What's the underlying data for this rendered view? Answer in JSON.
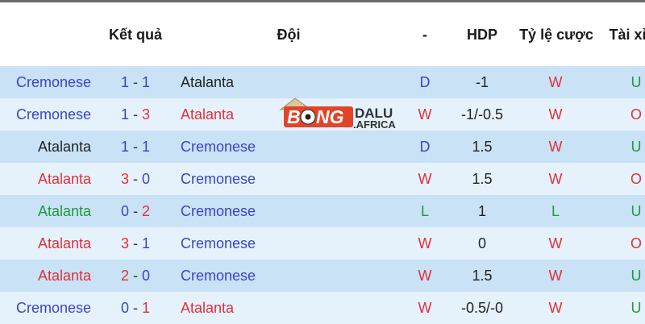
{
  "colors": {
    "blue": "#3a45c6",
    "red": "#e0303b",
    "green": "#1f9a3c",
    "dark": "#222222"
  },
  "header": {
    "result": "Kết quả",
    "team": "Đội",
    "dash": "-",
    "hdp": "HDP",
    "odds": "Tỷ lệ cược",
    "ou": "Tài xỉu"
  },
  "watermark": {
    "text_main": "BONG",
    "text_side1": "DALU",
    "text_side2": ".AFRICA"
  },
  "rows": [
    {
      "home": {
        "t": "Cremonese",
        "c": "blue"
      },
      "s1": {
        "t": "1",
        "c": "blue"
      },
      "s2": {
        "t": "1",
        "c": "blue"
      },
      "away": {
        "t": "Atalanta",
        "c": "dark"
      },
      "res": {
        "t": "D",
        "c": "blue"
      },
      "hdp": "-1",
      "odds": {
        "t": "W",
        "c": "red"
      },
      "ou": {
        "t": "U",
        "c": "green"
      }
    },
    {
      "home": {
        "t": "Cremonese",
        "c": "blue"
      },
      "s1": {
        "t": "1",
        "c": "blue"
      },
      "s2": {
        "t": "3",
        "c": "red"
      },
      "away": {
        "t": "Atalanta",
        "c": "red"
      },
      "res": {
        "t": "W",
        "c": "red"
      },
      "hdp": "-1/-0.5",
      "odds": {
        "t": "W",
        "c": "red"
      },
      "ou": {
        "t": "O",
        "c": "red"
      }
    },
    {
      "home": {
        "t": "Atalanta",
        "c": "dark"
      },
      "s1": {
        "t": "1",
        "c": "blue"
      },
      "s2": {
        "t": "1",
        "c": "blue"
      },
      "away": {
        "t": "Cremonese",
        "c": "blue"
      },
      "res": {
        "t": "D",
        "c": "blue"
      },
      "hdp": "1.5",
      "odds": {
        "t": "W",
        "c": "red"
      },
      "ou": {
        "t": "U",
        "c": "green"
      }
    },
    {
      "home": {
        "t": "Atalanta",
        "c": "red"
      },
      "s1": {
        "t": "3",
        "c": "red"
      },
      "s2": {
        "t": "0",
        "c": "blue"
      },
      "away": {
        "t": "Cremonese",
        "c": "blue"
      },
      "res": {
        "t": "W",
        "c": "red"
      },
      "hdp": "1.5",
      "odds": {
        "t": "W",
        "c": "red"
      },
      "ou": {
        "t": "O",
        "c": "red"
      }
    },
    {
      "home": {
        "t": "Atalanta",
        "c": "green"
      },
      "s1": {
        "t": "0",
        "c": "blue"
      },
      "s2": {
        "t": "2",
        "c": "red"
      },
      "away": {
        "t": "Cremonese",
        "c": "blue"
      },
      "res": {
        "t": "L",
        "c": "green"
      },
      "hdp": "1",
      "odds": {
        "t": "L",
        "c": "green"
      },
      "ou": {
        "t": "U",
        "c": "green"
      }
    },
    {
      "home": {
        "t": "Atalanta",
        "c": "red"
      },
      "s1": {
        "t": "3",
        "c": "red"
      },
      "s2": {
        "t": "1",
        "c": "blue"
      },
      "away": {
        "t": "Cremonese",
        "c": "blue"
      },
      "res": {
        "t": "W",
        "c": "red"
      },
      "hdp": "0",
      "odds": {
        "t": "W",
        "c": "red"
      },
      "ou": {
        "t": "O",
        "c": "red"
      }
    },
    {
      "home": {
        "t": "Atalanta",
        "c": "red"
      },
      "s1": {
        "t": "2",
        "c": "red"
      },
      "s2": {
        "t": "0",
        "c": "blue"
      },
      "away": {
        "t": "Cremonese",
        "c": "blue"
      },
      "res": {
        "t": "W",
        "c": "red"
      },
      "hdp": "1.5",
      "odds": {
        "t": "W",
        "c": "red"
      },
      "ou": {
        "t": "U",
        "c": "green"
      }
    },
    {
      "home": {
        "t": "Cremonese",
        "c": "blue"
      },
      "s1": {
        "t": "0",
        "c": "blue"
      },
      "s2": {
        "t": "1",
        "c": "red"
      },
      "away": {
        "t": "Atalanta",
        "c": "red"
      },
      "res": {
        "t": "W",
        "c": "red"
      },
      "hdp": "-0.5/-0",
      "odds": {
        "t": "W",
        "c": "red"
      },
      "ou": {
        "t": "U",
        "c": "green"
      }
    }
  ]
}
